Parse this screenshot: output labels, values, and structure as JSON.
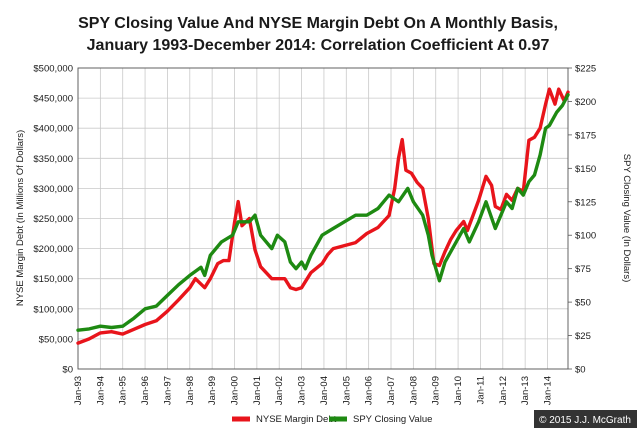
{
  "chart_data": {
    "type": "line",
    "title_lines": [
      "SPY Closing Value And NYSE Margin Debt On A Monthly Basis,",
      "January 1993-December 2014: Correlation Coefficient At 0.97"
    ],
    "xlabel": "",
    "ylabel_left": "NYSE Margin Debt (In Millions Of Dollars)",
    "ylabel_right": "SPY Closing Value (In Dollars)",
    "ylim_left": [
      0,
      500000
    ],
    "ylim_right": [
      0,
      225
    ],
    "yticks_left": [
      "$0",
      "$50,000",
      "$100,000",
      "$150,000",
      "$200,000",
      "$250,000",
      "$300,000",
      "$350,000",
      "$400,000",
      "$450,000",
      "$500,000"
    ],
    "yticks_right": [
      "$0",
      "$25",
      "$50",
      "$75",
      "$100",
      "$125",
      "$150",
      "$175",
      "$200",
      "$225"
    ],
    "x_ticks": [
      "Jan-93",
      "Jan-94",
      "Jan-95",
      "Jan-96",
      "Jan-97",
      "Jan-98",
      "Jan-99",
      "Jan-00",
      "Jan-01",
      "Jan-02",
      "Jan-03",
      "Jan-04",
      "Jan-05",
      "Jan-06",
      "Jan-07",
      "Jan-08",
      "Jan-09",
      "Jan-10",
      "Jan-11",
      "Jan-12",
      "Jan-13",
      "Jan-14"
    ],
    "x_range": [
      "1993-01",
      "2014-12"
    ],
    "grid": true,
    "legend_position": "bottom",
    "series": [
      {
        "name": "NYSE Margin Debt",
        "axis": "left",
        "color": "#e8141b",
        "points": [
          [
            "1993-01",
            43000
          ],
          [
            "1993-07",
            50000
          ],
          [
            "1994-01",
            60000
          ],
          [
            "1994-07",
            62000
          ],
          [
            "1995-01",
            58000
          ],
          [
            "1995-07",
            66000
          ],
          [
            "1996-01",
            74000
          ],
          [
            "1996-07",
            80000
          ],
          [
            "1997-01",
            96000
          ],
          [
            "1997-07",
            115000
          ],
          [
            "1998-01",
            135000
          ],
          [
            "1998-04",
            150000
          ],
          [
            "1998-09",
            135000
          ],
          [
            "1998-12",
            150000
          ],
          [
            "1999-04",
            175000
          ],
          [
            "1999-07",
            180000
          ],
          [
            "1999-10",
            180000
          ],
          [
            "2000-01",
            243000
          ],
          [
            "2000-03",
            278000
          ],
          [
            "2000-05",
            238000
          ],
          [
            "2000-09",
            250000
          ],
          [
            "2000-12",
            198000
          ],
          [
            "2001-03",
            170000
          ],
          [
            "2001-09",
            150000
          ],
          [
            "2002-01",
            150000
          ],
          [
            "2002-04",
            150000
          ],
          [
            "2002-07",
            135000
          ],
          [
            "2002-10",
            132000
          ],
          [
            "2003-01",
            135000
          ],
          [
            "2003-06",
            160000
          ],
          [
            "2003-12",
            175000
          ],
          [
            "2004-03",
            190000
          ],
          [
            "2004-06",
            200000
          ],
          [
            "2004-12",
            205000
          ],
          [
            "2005-06",
            210000
          ],
          [
            "2005-12",
            225000
          ],
          [
            "2006-06",
            235000
          ],
          [
            "2006-12",
            255000
          ],
          [
            "2007-03",
            300000
          ],
          [
            "2007-05",
            350000
          ],
          [
            "2007-07",
            381000
          ],
          [
            "2007-09",
            330000
          ],
          [
            "2007-12",
            325000
          ],
          [
            "2008-03",
            310000
          ],
          [
            "2008-06",
            300000
          ],
          [
            "2008-09",
            250000
          ],
          [
            "2008-12",
            175000
          ],
          [
            "2009-03",
            172000
          ],
          [
            "2009-06",
            195000
          ],
          [
            "2009-09",
            215000
          ],
          [
            "2009-12",
            230000
          ],
          [
            "2010-04",
            245000
          ],
          [
            "2010-06",
            230000
          ],
          [
            "2010-09",
            255000
          ],
          [
            "2010-12",
            280000
          ],
          [
            "2011-04",
            320000
          ],
          [
            "2011-07",
            305000
          ],
          [
            "2011-09",
            270000
          ],
          [
            "2011-12",
            265000
          ],
          [
            "2012-03",
            290000
          ],
          [
            "2012-06",
            280000
          ],
          [
            "2012-09",
            300000
          ],
          [
            "2012-12",
            295000
          ],
          [
            "2013-03",
            380000
          ],
          [
            "2013-06",
            385000
          ],
          [
            "2013-09",
            400000
          ],
          [
            "2013-12",
            440000
          ],
          [
            "2014-02",
            465000
          ],
          [
            "2014-05",
            440000
          ],
          [
            "2014-07",
            465000
          ],
          [
            "2014-10",
            445000
          ],
          [
            "2014-12",
            460000
          ]
        ]
      },
      {
        "name": "SPY Closing Value",
        "axis": "right",
        "color": "#1e8a12",
        "points": [
          [
            "1993-01",
            29
          ],
          [
            "1993-07",
            30
          ],
          [
            "1994-01",
            32
          ],
          [
            "1994-07",
            31
          ],
          [
            "1995-01",
            32
          ],
          [
            "1995-07",
            38
          ],
          [
            "1996-01",
            45
          ],
          [
            "1996-07",
            47
          ],
          [
            "1997-01",
            55
          ],
          [
            "1997-07",
            63
          ],
          [
            "1998-01",
            70
          ],
          [
            "1998-07",
            76
          ],
          [
            "1998-09",
            70
          ],
          [
            "1998-12",
            85
          ],
          [
            "1999-06",
            95
          ],
          [
            "1999-12",
            100
          ],
          [
            "2000-03",
            110
          ],
          [
            "2000-09",
            110
          ],
          [
            "2000-12",
            115
          ],
          [
            "2001-03",
            100
          ],
          [
            "2001-09",
            90
          ],
          [
            "2001-12",
            100
          ],
          [
            "2002-04",
            95
          ],
          [
            "2002-07",
            80
          ],
          [
            "2002-10",
            75
          ],
          [
            "2003-01",
            80
          ],
          [
            "2003-03",
            75
          ],
          [
            "2003-06",
            85
          ],
          [
            "2003-12",
            100
          ],
          [
            "2004-06",
            105
          ],
          [
            "2004-12",
            110
          ],
          [
            "2005-06",
            115
          ],
          [
            "2005-12",
            115
          ],
          [
            "2006-06",
            120
          ],
          [
            "2006-12",
            130
          ],
          [
            "2007-05",
            125
          ],
          [
            "2007-10",
            135
          ],
          [
            "2008-01",
            125
          ],
          [
            "2008-06",
            115
          ],
          [
            "2008-09",
            100
          ],
          [
            "2008-11",
            85
          ],
          [
            "2009-03",
            66
          ],
          [
            "2009-06",
            80
          ],
          [
            "2009-12",
            95
          ],
          [
            "2010-04",
            105
          ],
          [
            "2010-07",
            95
          ],
          [
            "2010-12",
            110
          ],
          [
            "2011-04",
            125
          ],
          [
            "2011-09",
            105
          ],
          [
            "2011-12",
            115
          ],
          [
            "2012-03",
            125
          ],
          [
            "2012-06",
            120
          ],
          [
            "2012-09",
            135
          ],
          [
            "2012-12",
            130
          ],
          [
            "2013-03",
            140
          ],
          [
            "2013-06",
            145
          ],
          [
            "2013-09",
            160
          ],
          [
            "2013-12",
            180
          ],
          [
            "2014-02",
            182
          ],
          [
            "2014-06",
            192
          ],
          [
            "2014-09",
            197
          ],
          [
            "2014-12",
            205
          ]
        ]
      }
    ],
    "copyright": "© 2015 J.J. McGrath"
  }
}
